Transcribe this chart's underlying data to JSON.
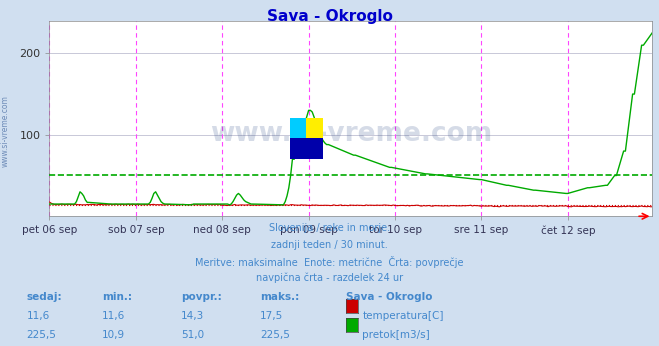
{
  "title": "Sava - Okroglo",
  "title_color": "#0000cc",
  "bg_color": "#d0dff0",
  "plot_bg_color": "#ffffff",
  "grid_color": "#c8c8d8",
  "text_color": "#4488cc",
  "n_points": 336,
  "day_ticks": [
    0,
    48,
    96,
    144,
    192,
    240,
    288
  ],
  "day_labels": [
    "pet 06 sep",
    "sob 07 sep",
    "ned 08 sep",
    "pon 09 sep",
    "tor 10 sep",
    "sre 11 sep",
    "čet 12 sep"
  ],
  "ylim": [
    0,
    240
  ],
  "yticks": [
    100,
    200
  ],
  "vline_color": "#ff44ff",
  "temp_color": "#cc0000",
  "flow_color": "#00aa00",
  "avg_flow_value": 51.0,
  "avg_temp_value": 14.3,
  "watermark": "www.si-vreme.com",
  "footer_lines": [
    "Slovenija / reke in morje.",
    "zadnji teden / 30 minut.",
    "Meritve: maksimalne  Enote: metrične  Črta: povprečje",
    "navpična črta - razdelek 24 ur"
  ],
  "table_headers": [
    "sedaj:",
    "min.:",
    "povpr.:",
    "maks.:",
    "Sava - Okroglo"
  ],
  "temp_row": [
    "11,6",
    "11,6",
    "14,3",
    "17,5",
    "temperatura[C]"
  ],
  "flow_row": [
    "225,5",
    "10,9",
    "51,0",
    "225,5",
    "pretok[m3/s]"
  ],
  "temp_box_color": "#cc0000",
  "flow_box_color": "#00aa00"
}
